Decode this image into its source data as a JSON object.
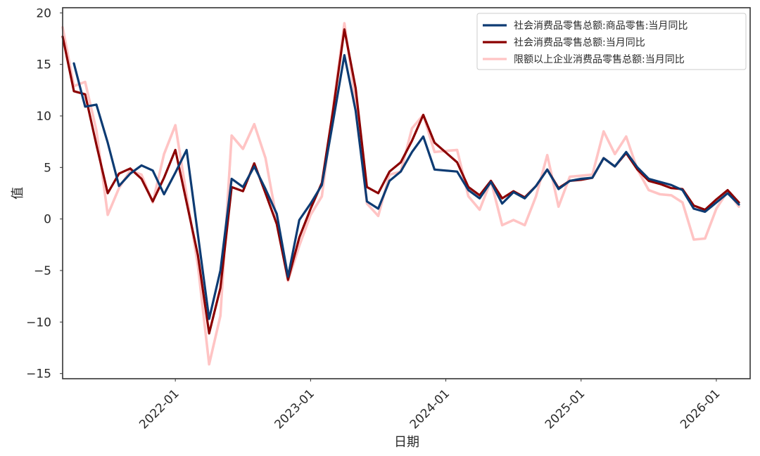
{
  "chart_data": {
    "type": "line",
    "xlabel": "日期",
    "ylabel": "值",
    "ylim": [
      -15.5,
      20.5
    ],
    "xlim": [
      "2021-03-01",
      "2026-04-01"
    ],
    "yticks": [
      -15,
      -10,
      -5,
      0,
      5,
      10,
      15,
      20
    ],
    "xticks": [
      "2022-01",
      "2023-01",
      "2024-01",
      "2025-01",
      "2026-01"
    ],
    "grid": false,
    "legend_position": "top-right",
    "series": [
      {
        "name": "社会消费品零售总额:商品零售:当月同比",
        "color": "#0d3b73",
        "data": [
          [
            "2021-04",
            15.1
          ],
          [
            "2021-05",
            10.9
          ],
          [
            "2021-06",
            11.1
          ],
          [
            "2021-07",
            7.4
          ],
          [
            "2021-08",
            3.2
          ],
          [
            "2021-09",
            4.4
          ],
          [
            "2021-10",
            5.2
          ],
          [
            "2021-11",
            4.7
          ],
          [
            "2021-12",
            2.4
          ],
          [
            "2022-01",
            4.5
          ],
          [
            "2022-02",
            6.7
          ],
          [
            "2022-04",
            -9.7
          ],
          [
            "2022-05",
            -5.0
          ],
          [
            "2022-06",
            3.9
          ],
          [
            "2022-07",
            3.1
          ],
          [
            "2022-08",
            5.1
          ],
          [
            "2022-09",
            2.9
          ],
          [
            "2022-10",
            0.5
          ],
          [
            "2022-11",
            -5.6
          ],
          [
            "2022-12",
            -0.1
          ],
          [
            "2023-01",
            1.5
          ],
          [
            "2023-02",
            3.3
          ],
          [
            "2023-03",
            9.5
          ],
          [
            "2023-04",
            15.9
          ],
          [
            "2023-05",
            10.5
          ],
          [
            "2023-06",
            1.7
          ],
          [
            "2023-07",
            1.0
          ],
          [
            "2023-08",
            3.7
          ],
          [
            "2023-09",
            4.6
          ],
          [
            "2023-10",
            6.5
          ],
          [
            "2023-11",
            8.0
          ],
          [
            "2023-12",
            4.8
          ],
          [
            "2024-02",
            4.6
          ],
          [
            "2024-03",
            2.8
          ],
          [
            "2024-04",
            2.0
          ],
          [
            "2024-05",
            3.6
          ],
          [
            "2024-06",
            1.5
          ],
          [
            "2024-07",
            2.6
          ],
          [
            "2024-08",
            2.0
          ],
          [
            "2024-09",
            3.2
          ],
          [
            "2024-10",
            4.8
          ],
          [
            "2024-11",
            2.9
          ],
          [
            "2024-12",
            3.7
          ],
          [
            "2025-01",
            3.9
          ],
          [
            "2025-02",
            4.0
          ],
          [
            "2025-03",
            5.9
          ],
          [
            "2025-04",
            5.1
          ],
          [
            "2025-05",
            6.5
          ],
          [
            "2025-06",
            5.0
          ],
          [
            "2025-07",
            3.9
          ],
          [
            "2025-08",
            3.6
          ],
          [
            "2025-09",
            3.3
          ],
          [
            "2025-10",
            2.8
          ],
          [
            "2025-11",
            1.0
          ],
          [
            "2025-12",
            0.7
          ],
          [
            "2026-01",
            1.6
          ],
          [
            "2026-02",
            2.5
          ],
          [
            "2026-03",
            1.4
          ]
        ]
      },
      {
        "name": "社会消费品零售总额:当月同比",
        "color": "#8b0000",
        "data": [
          [
            "2021-03",
            17.7
          ],
          [
            "2021-04",
            12.4
          ],
          [
            "2021-05",
            12.1
          ],
          [
            "2021-06",
            7.2
          ],
          [
            "2021-07",
            2.5
          ],
          [
            "2021-08",
            4.4
          ],
          [
            "2021-09",
            4.9
          ],
          [
            "2021-10",
            3.9
          ],
          [
            "2021-11",
            1.7
          ],
          [
            "2021-12",
            4.0
          ],
          [
            "2022-01",
            6.7
          ],
          [
            "2022-03",
            -3.5
          ],
          [
            "2022-04",
            -11.1
          ],
          [
            "2022-05",
            -6.7
          ],
          [
            "2022-06",
            3.1
          ],
          [
            "2022-07",
            2.7
          ],
          [
            "2022-08",
            5.4
          ],
          [
            "2022-09",
            2.5
          ],
          [
            "2022-10",
            -0.5
          ],
          [
            "2022-11",
            -5.9
          ],
          [
            "2022-12",
            -1.8
          ],
          [
            "2023-01",
            1.0
          ],
          [
            "2023-02",
            3.5
          ],
          [
            "2023-03",
            10.6
          ],
          [
            "2023-04",
            18.4
          ],
          [
            "2023-05",
            12.7
          ],
          [
            "2023-06",
            3.1
          ],
          [
            "2023-07",
            2.5
          ],
          [
            "2023-08",
            4.6
          ],
          [
            "2023-09",
            5.5
          ],
          [
            "2023-10",
            7.6
          ],
          [
            "2023-11",
            10.1
          ],
          [
            "2023-12",
            7.4
          ],
          [
            "2024-02",
            5.5
          ],
          [
            "2024-03",
            3.1
          ],
          [
            "2024-04",
            2.3
          ],
          [
            "2024-05",
            3.7
          ],
          [
            "2024-06",
            2.0
          ],
          [
            "2024-07",
            2.7
          ],
          [
            "2024-08",
            2.1
          ],
          [
            "2024-09",
            3.2
          ],
          [
            "2024-10",
            4.8
          ],
          [
            "2024-11",
            3.0
          ],
          [
            "2024-12",
            3.7
          ],
          [
            "2025-01",
            3.8
          ],
          [
            "2025-02",
            4.0
          ],
          [
            "2025-03",
            5.9
          ],
          [
            "2025-04",
            5.1
          ],
          [
            "2025-05",
            6.4
          ],
          [
            "2025-06",
            4.8
          ],
          [
            "2025-07",
            3.7
          ],
          [
            "2025-08",
            3.4
          ],
          [
            "2025-09",
            3.0
          ],
          [
            "2025-10",
            2.9
          ],
          [
            "2025-11",
            1.3
          ],
          [
            "2025-12",
            0.9
          ],
          [
            "2026-01",
            1.9
          ],
          [
            "2026-02",
            2.8
          ],
          [
            "2026-03",
            1.6
          ]
        ]
      },
      {
        "name": "限额以上企业消费品零售总额:当月同比",
        "color": "#ffc4c4",
        "data": [
          [
            "2021-03",
            18.6
          ],
          [
            "2021-04",
            12.9
          ],
          [
            "2021-05",
            13.3
          ],
          [
            "2021-06",
            8.6
          ],
          [
            "2021-07",
            0.4
          ],
          [
            "2021-08",
            3.0
          ],
          [
            "2021-09",
            4.7
          ],
          [
            "2021-10",
            4.3
          ],
          [
            "2021-11",
            1.6
          ],
          [
            "2021-12",
            6.3
          ],
          [
            "2022-01",
            9.1
          ],
          [
            "2022-03",
            -4.5
          ],
          [
            "2022-04",
            -14.1
          ],
          [
            "2022-05",
            -9.4
          ],
          [
            "2022-06",
            8.1
          ],
          [
            "2022-07",
            6.8
          ],
          [
            "2022-08",
            9.2
          ],
          [
            "2022-09",
            5.9
          ],
          [
            "2022-10",
            -0.1
          ],
          [
            "2022-11",
            -6.0
          ],
          [
            "2022-12",
            -2.6
          ],
          [
            "2023-01",
            0.4
          ],
          [
            "2023-02",
            2.2
          ],
          [
            "2023-03",
            10.8
          ],
          [
            "2023-04",
            19.0
          ],
          [
            "2023-05",
            11.4
          ],
          [
            "2023-06",
            1.5
          ],
          [
            "2023-07",
            0.3
          ],
          [
            "2023-08",
            4.3
          ],
          [
            "2023-09",
            4.6
          ],
          [
            "2023-10",
            8.8
          ],
          [
            "2023-11",
            10.1
          ],
          [
            "2023-12",
            6.5
          ],
          [
            "2024-02",
            6.7
          ],
          [
            "2024-03",
            2.2
          ],
          [
            "2024-04",
            0.9
          ],
          [
            "2024-05",
            3.7
          ],
          [
            "2024-06",
            -0.6
          ],
          [
            "2024-07",
            -0.1
          ],
          [
            "2024-08",
            -0.6
          ],
          [
            "2024-09",
            2.2
          ],
          [
            "2024-10",
            6.2
          ],
          [
            "2024-11",
            1.2
          ],
          [
            "2024-12",
            4.1
          ],
          [
            "2025-01",
            4.2
          ],
          [
            "2025-02",
            4.3
          ],
          [
            "2025-03",
            8.5
          ],
          [
            "2025-04",
            6.3
          ],
          [
            "2025-05",
            8.0
          ],
          [
            "2025-06",
            4.8
          ],
          [
            "2025-07",
            2.8
          ],
          [
            "2025-08",
            2.4
          ],
          [
            "2025-09",
            2.3
          ],
          [
            "2025-10",
            1.6
          ],
          [
            "2025-11",
            -2.0
          ],
          [
            "2025-12",
            -1.9
          ],
          [
            "2026-01",
            1.0
          ],
          [
            "2026-02",
            2.7
          ],
          [
            "2026-03",
            1.2
          ]
        ]
      }
    ]
  }
}
